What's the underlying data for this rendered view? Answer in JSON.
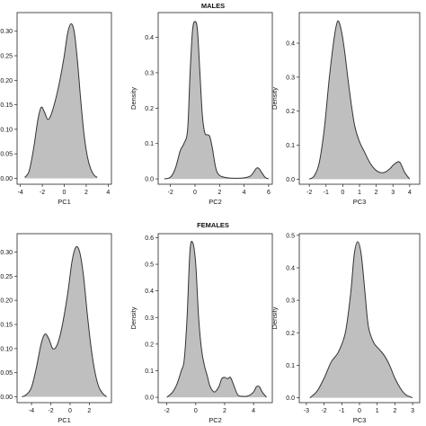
{
  "figure": {
    "section_titles": [
      "MALES",
      "FEMALES"
    ]
  },
  "style": {
    "fill": "#bfbfbf",
    "stroke": "#333333"
  },
  "chart_data": [
    {
      "type": "area",
      "group": "MALES",
      "xlabel": "PC1",
      "ylabel": "Density",
      "xlim": [
        -4.3,
        4.3
      ],
      "ylim": [
        -0.012,
        0.338
      ],
      "xticks": [
        -4,
        -2,
        0,
        2,
        4
      ],
      "xtick_labels": [
        "-4",
        "-2",
        "0",
        "2",
        "4"
      ],
      "yticks": [
        0,
        0.05,
        0.1,
        0.15,
        0.2,
        0.25,
        0.3
      ],
      "ytick_labels": [
        "0.00",
        "0.05",
        "0.10",
        "0.15",
        "0.20",
        "0.25",
        "0.30"
      ],
      "x": [
        -3.6,
        -3.2,
        -2.8,
        -2.4,
        -2.1,
        -1.8,
        -1.5,
        -1.2,
        -0.8,
        -0.4,
        0.0,
        0.3,
        0.6,
        0.9,
        1.2,
        1.5,
        1.8,
        2.1,
        2.4,
        2.7,
        3.0
      ],
      "y": [
        0.002,
        0.015,
        0.06,
        0.12,
        0.145,
        0.135,
        0.12,
        0.13,
        0.16,
        0.2,
        0.25,
        0.295,
        0.315,
        0.3,
        0.24,
        0.16,
        0.09,
        0.045,
        0.02,
        0.007,
        0.002
      ]
    },
    {
      "type": "area",
      "group": "MALES",
      "xlabel": "PC2",
      "ylabel": "Density",
      "xlim": [
        -3.0,
        6.3
      ],
      "ylim": [
        -0.015,
        0.47
      ],
      "xticks": [
        -2,
        0,
        2,
        4,
        6
      ],
      "xtick_labels": [
        "-2",
        "0",
        "2",
        "4",
        "6"
      ],
      "yticks": [
        0.0,
        0.1,
        0.2,
        0.3,
        0.4
      ],
      "ytick_labels": [
        "0.0",
        "0.1",
        "0.2",
        "0.3",
        "0.4"
      ],
      "x": [
        -2.5,
        -2.0,
        -1.6,
        -1.2,
        -0.9,
        -0.6,
        -0.4,
        -0.2,
        0.0,
        0.2,
        0.4,
        0.6,
        0.8,
        1.0,
        1.2,
        1.4,
        1.7,
        2.0,
        2.5,
        3.0,
        3.5,
        4.0,
        4.5,
        4.8,
        5.0,
        5.2,
        5.4,
        5.7,
        6.0
      ],
      "y": [
        0.0,
        0.005,
        0.03,
        0.08,
        0.1,
        0.14,
        0.3,
        0.42,
        0.445,
        0.42,
        0.3,
        0.18,
        0.13,
        0.125,
        0.12,
        0.09,
        0.03,
        0.01,
        0.004,
        0.002,
        0.002,
        0.003,
        0.008,
        0.02,
        0.03,
        0.03,
        0.02,
        0.005,
        0.0
      ]
    },
    {
      "type": "area",
      "group": "MALES",
      "xlabel": "PC3",
      "ylabel": "Density",
      "xlim": [
        -2.6,
        4.6
      ],
      "ylim": [
        -0.015,
        0.49
      ],
      "xticks": [
        -2,
        -1,
        0,
        1,
        2,
        3,
        4
      ],
      "xtick_labels": [
        "-2",
        "-1",
        "0",
        "1",
        "2",
        "3",
        "4"
      ],
      "yticks": [
        0.0,
        0.1,
        0.2,
        0.3,
        0.4
      ],
      "ytick_labels": [
        "0.0",
        "0.1",
        "0.2",
        "0.3",
        "0.4"
      ],
      "x": [
        -2.0,
        -1.7,
        -1.4,
        -1.1,
        -0.8,
        -0.5,
        -0.3,
        -0.1,
        0.1,
        0.4,
        0.7,
        1.0,
        1.3,
        1.6,
        1.9,
        2.2,
        2.5,
        2.8,
        3.1,
        3.4,
        3.7,
        4.0
      ],
      "y": [
        0.0,
        0.01,
        0.05,
        0.15,
        0.3,
        0.42,
        0.465,
        0.44,
        0.38,
        0.26,
        0.16,
        0.11,
        0.08,
        0.05,
        0.03,
        0.02,
        0.02,
        0.03,
        0.045,
        0.05,
        0.02,
        0.0
      ]
    },
    {
      "type": "area",
      "group": "FEMALES",
      "xlabel": "PC1",
      "ylabel": "Density",
      "xlim": [
        -5.5,
        4.3
      ],
      "ylim": [
        -0.012,
        0.338
      ],
      "xticks": [
        -4,
        -2,
        0,
        2
      ],
      "xtick_labels": [
        "-4",
        "-2",
        "0",
        "2"
      ],
      "yticks": [
        0,
        0.05,
        0.1,
        0.15,
        0.2,
        0.25,
        0.3
      ],
      "ytick_labels": [
        "0.00",
        "0.05",
        "0.10",
        "0.15",
        "0.20",
        "0.25",
        "0.30"
      ],
      "x": [
        -5.0,
        -4.5,
        -4.0,
        -3.5,
        -3.0,
        -2.6,
        -2.2,
        -1.8,
        -1.4,
        -1.0,
        -0.6,
        -0.2,
        0.2,
        0.6,
        1.0,
        1.4,
        1.8,
        2.2,
        2.6,
        3.0,
        3.4,
        3.8
      ],
      "y": [
        0.0,
        0.005,
        0.02,
        0.06,
        0.11,
        0.13,
        0.12,
        0.1,
        0.105,
        0.13,
        0.17,
        0.22,
        0.28,
        0.31,
        0.3,
        0.25,
        0.17,
        0.1,
        0.05,
        0.02,
        0.007,
        0.0
      ]
    },
    {
      "type": "area",
      "group": "FEMALES",
      "xlabel": "PC2",
      "ylabel": "Density",
      "xlim": [
        -2.6,
        5.3
      ],
      "ylim": [
        -0.02,
        0.615
      ],
      "xticks": [
        -2,
        0,
        2,
        4
      ],
      "xtick_labels": [
        "-2",
        "0",
        "2",
        "4"
      ],
      "yticks": [
        0.0,
        0.1,
        0.2,
        0.3,
        0.4,
        0.5,
        0.6
      ],
      "ytick_labels": [
        "0.0",
        "0.1",
        "0.2",
        "0.3",
        "0.4",
        "0.5",
        "0.6"
      ],
      "x": [
        -2.0,
        -1.6,
        -1.3,
        -1.0,
        -0.8,
        -0.6,
        -0.4,
        -0.2,
        0.0,
        0.2,
        0.4,
        0.6,
        0.8,
        1.0,
        1.3,
        1.6,
        1.8,
        2.0,
        2.2,
        2.4,
        2.6,
        2.9,
        3.2,
        3.6,
        4.0,
        4.2,
        4.4,
        4.6,
        4.9
      ],
      "y": [
        0.0,
        0.02,
        0.05,
        0.1,
        0.14,
        0.3,
        0.55,
        0.58,
        0.5,
        0.3,
        0.18,
        0.12,
        0.08,
        0.04,
        0.02,
        0.04,
        0.07,
        0.075,
        0.07,
        0.075,
        0.05,
        0.01,
        0.004,
        0.005,
        0.02,
        0.04,
        0.04,
        0.02,
        0.0
      ]
    },
    {
      "type": "area",
      "group": "FEMALES",
      "xlabel": "PC3",
      "ylabel": "Density",
      "xlim": [
        -3.4,
        3.4
      ],
      "ylim": [
        -0.015,
        0.505
      ],
      "xticks": [
        -3,
        -2,
        -1,
        0,
        1,
        2,
        3
      ],
      "xtick_labels": [
        "-3",
        "-2",
        "-1",
        "0",
        "1",
        "2",
        "3"
      ],
      "yticks": [
        0.0,
        0.1,
        0.2,
        0.3,
        0.4,
        0.5
      ],
      "ytick_labels": [
        "0.0",
        "0.1",
        "0.2",
        "0.3",
        "0.4",
        "0.5"
      ],
      "x": [
        -2.8,
        -2.4,
        -2.0,
        -1.6,
        -1.2,
        -0.8,
        -0.5,
        -0.3,
        -0.1,
        0.1,
        0.3,
        0.5,
        0.8,
        1.1,
        1.4,
        1.7,
        2.0,
        2.3,
        2.6,
        3.0
      ],
      "y": [
        0.0,
        0.02,
        0.06,
        0.11,
        0.14,
        0.2,
        0.32,
        0.44,
        0.48,
        0.44,
        0.33,
        0.22,
        0.17,
        0.15,
        0.13,
        0.1,
        0.06,
        0.03,
        0.01,
        0.0
      ]
    }
  ]
}
